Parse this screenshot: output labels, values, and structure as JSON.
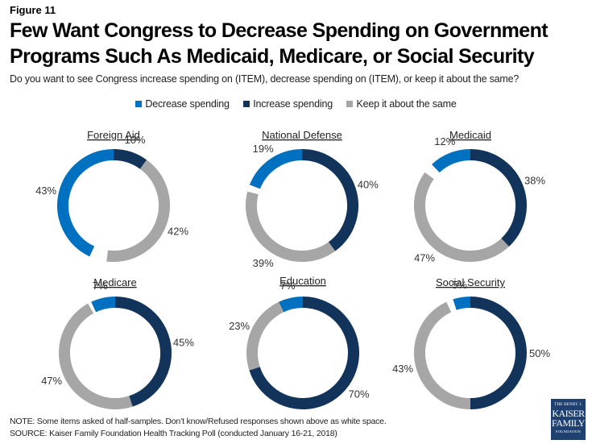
{
  "figure_label": "Figure 11",
  "title_line1": "Few Want Congress to Decrease Spending on Government",
  "title_line2": "Programs Such As Medicaid, Medicare, or Social Security",
  "subtitle": "Do you want to see Congress increase spending on (ITEM), decrease spending on (ITEM), or keep it about the same?",
  "legend": [
    {
      "label": "Decrease spending",
      "color": "#0070c0"
    },
    {
      "label": "Increase spending",
      "color": "#12345a"
    },
    {
      "label": "Keep it about the same",
      "color": "#a6a6a6"
    }
  ],
  "note": "NOTE: Some items asked of half-samples. Don’t know/Refused responses shown above as white space.",
  "source": "SOURCE: Kaiser Family Foundation Health Tracking Poll (conducted January 16-21, 2018)",
  "logo": {
    "line1": "THE HENRY J.",
    "line2": "KAISER",
    "line3": "FAMILY",
    "line4": "FOUNDATION"
  },
  "chart_data": {
    "type": "pie",
    "subtype": "donut",
    "title": "Few Want Congress to Decrease Spending on Government Programs Such As Medicaid, Medicare, or Social Security",
    "series_order": [
      "Increase spending",
      "Keep it about the same",
      "Don't know/Refused (white space)",
      "Decrease spending"
    ],
    "colors": {
      "Increase spending": "#12345a",
      "Keep it about the same": "#a6a6a6",
      "Decrease spending": "#0070c0"
    },
    "legend_position": "top-center",
    "charts": [
      {
        "name": "Foreign Aid",
        "increase": 10,
        "keep": 42,
        "decrease": 43,
        "labels": {
          "increase": "10%",
          "keep": "42%",
          "decrease": "43%"
        }
      },
      {
        "name": "National Defense",
        "increase": 40,
        "keep": 39,
        "decrease": 19,
        "labels": {
          "increase": "40%",
          "keep": "39%",
          "decrease": "19%"
        }
      },
      {
        "name": "Medicaid",
        "increase": 38,
        "keep": 47,
        "decrease": 12,
        "labels": {
          "increase": "38%",
          "keep": "47%",
          "decrease": "12%"
        }
      },
      {
        "name": "Medicare",
        "increase": 45,
        "keep": 47,
        "decrease": 7,
        "labels": {
          "increase": "45%",
          "keep": "47%",
          "decrease": "7%"
        }
      },
      {
        "name": "Education",
        "increase": 70,
        "keep": 23,
        "decrease": 7,
        "labels": {
          "increase": "70%",
          "keep": "23%",
          "decrease": "7%"
        }
      },
      {
        "name": "Social Security",
        "increase": 50,
        "keep": 43,
        "decrease": 5,
        "labels": {
          "increase": "50%",
          "keep": "43%",
          "decrease": "5%"
        }
      }
    ]
  }
}
